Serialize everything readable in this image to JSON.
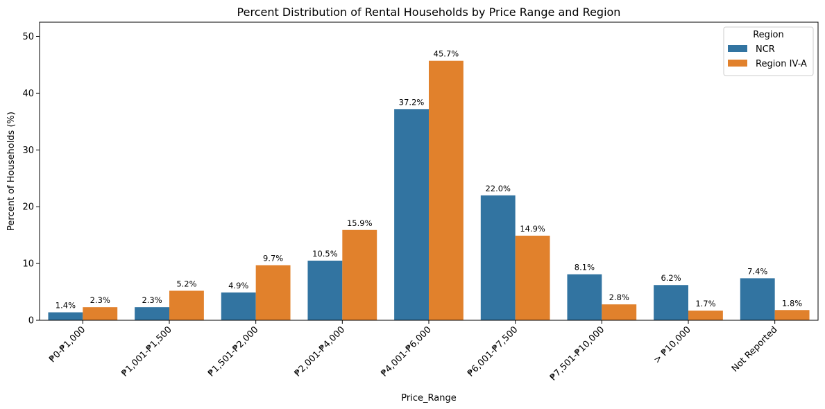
{
  "chart_data": {
    "type": "bar",
    "title": "Percent Distribution of Rental Households by Price Range and Region",
    "xlabel": "Price_Range",
    "ylabel": "Percent of Households (%)",
    "ylim": [
      0,
      52.5
    ],
    "yticks": [
      0,
      10,
      20,
      30,
      40,
      50
    ],
    "categories": [
      "₱0-₱1,000",
      "₱1,001-₱1,500",
      "₱1,501-₱2,000",
      "₱2,001-₱4,000",
      "₱4,001-₱6,000",
      "₱6,001-₱7,500",
      "₱7,501-₱10,000",
      "> ₱10,000",
      "Not Reported"
    ],
    "series": [
      {
        "name": "NCR",
        "color": "#3274a1",
        "values": [
          1.4,
          2.3,
          4.9,
          10.5,
          37.2,
          22.0,
          8.1,
          6.2,
          7.4
        ],
        "labels": [
          "1.4%",
          "2.3%",
          "4.9%",
          "10.5%",
          "37.2%",
          "22.0%",
          "8.1%",
          "6.2%",
          "7.4%"
        ]
      },
      {
        "name": "Region IV-A",
        "color": "#e1812c",
        "values": [
          2.3,
          5.2,
          9.7,
          15.9,
          45.7,
          14.9,
          2.8,
          1.7,
          1.8
        ],
        "labels": [
          "2.3%",
          "5.2%",
          "9.7%",
          "15.9%",
          "45.7%",
          "14.9%",
          "2.8%",
          "1.7%",
          "1.8%"
        ]
      }
    ],
    "legend": {
      "title": "Region",
      "placement": "top-right"
    },
    "grid": false
  }
}
